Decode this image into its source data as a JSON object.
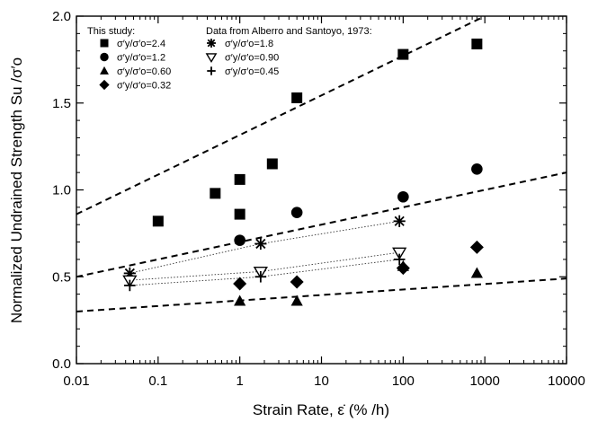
{
  "chart_data": {
    "type": "scatter",
    "xlabel": "Strain Rate, ε̇ (% /h)",
    "ylabel": "Normalized Undrained Strength Su /σ′o",
    "xscale": "log",
    "xlim": [
      0.01,
      10000
    ],
    "ylim": [
      0.0,
      2.0
    ],
    "x_ticks": [
      "0.01",
      "0.1",
      "1",
      "10",
      "100",
      "1000",
      "10000"
    ],
    "y_ticks": [
      "0.0",
      "0.5",
      "1.0",
      "1.5",
      "2.0"
    ],
    "grid": false,
    "legend_headers": [
      "This study:",
      "Data from Alberro and Santoyo, 1973:"
    ],
    "series": [
      {
        "name": "σ′y/σ′o=2.4",
        "marker": "square",
        "group": "This study",
        "points": [
          [
            0.1,
            0.82
          ],
          [
            0.5,
            0.98
          ],
          [
            1,
            1.06
          ],
          [
            1,
            0.86
          ],
          [
            2.5,
            1.15
          ],
          [
            5,
            1.53
          ],
          [
            100,
            1.78
          ],
          [
            800,
            1.84
          ]
        ]
      },
      {
        "name": "σ′y/σ′o=1.2",
        "marker": "circle",
        "group": "This study",
        "points": [
          [
            1,
            0.71
          ],
          [
            5,
            0.87
          ],
          [
            100,
            0.96
          ],
          [
            800,
            1.12
          ]
        ]
      },
      {
        "name": "σ′y/σ′o=0.60",
        "marker": "triangle",
        "group": "This study",
        "points": [
          [
            1,
            0.36
          ],
          [
            5,
            0.36
          ],
          [
            100,
            0.56
          ],
          [
            800,
            0.52
          ]
        ]
      },
      {
        "name": "σ′y/σ′o=0.32",
        "marker": "diamond",
        "group": "This study",
        "points": [
          [
            1,
            0.46
          ],
          [
            5,
            0.47
          ],
          [
            100,
            0.55
          ],
          [
            800,
            0.67
          ]
        ]
      },
      {
        "name": "σ′y/σ′o=1.8",
        "marker": "asterisk",
        "group": "Alberro and Santoyo",
        "points": [
          [
            0.045,
            0.52
          ],
          [
            1.8,
            0.69
          ],
          [
            90,
            0.82
          ]
        ]
      },
      {
        "name": "σ′y/σ′o=0.90",
        "marker": "triangle-down-open",
        "group": "Alberro and Santoyo",
        "points": [
          [
            0.045,
            0.48
          ],
          [
            1.8,
            0.53
          ],
          [
            90,
            0.64
          ]
        ]
      },
      {
        "name": "σ′y/σ′o=0.45",
        "marker": "plus",
        "group": "Alberro and Santoyo",
        "points": [
          [
            0.045,
            0.45
          ],
          [
            1.8,
            0.5
          ],
          [
            90,
            0.6
          ]
        ]
      }
    ],
    "dotted_trend_lines": [
      {
        "x": [
          0.045,
          1.8,
          90
        ],
        "y": [
          0.52,
          0.69,
          0.82
        ]
      },
      {
        "x": [
          0.045,
          1.8,
          90
        ],
        "y": [
          0.48,
          0.53,
          0.64
        ]
      },
      {
        "x": [
          0.045,
          1.8,
          90
        ],
        "y": [
          0.45,
          0.5,
          0.6
        ]
      }
    ],
    "dashed_bound_lines": [
      {
        "x": [
          0.01,
          1000
        ],
        "y": [
          0.86,
          2.0
        ]
      },
      {
        "x": [
          0.01,
          10000
        ],
        "y": [
          0.5,
          1.1
        ]
      },
      {
        "x": [
          0.01,
          10000
        ],
        "y": [
          0.3,
          0.49
        ]
      }
    ]
  }
}
